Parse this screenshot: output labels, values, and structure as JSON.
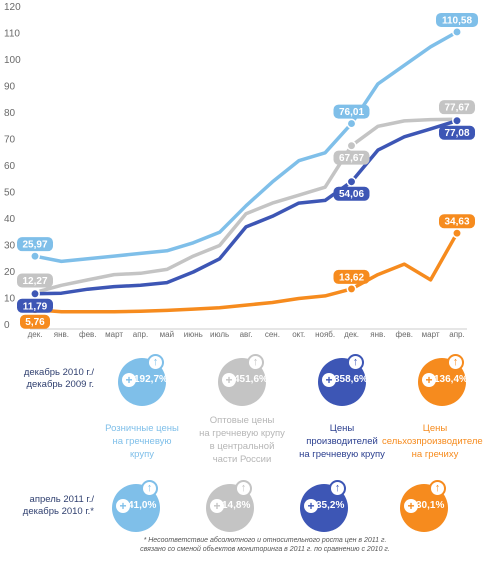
{
  "chart_data": {
    "type": "line",
    "categories": [
      "дек.",
      "янв.",
      "фев.",
      "март",
      "апр.",
      "май",
      "июнь",
      "июль",
      "авг.",
      "сен.",
      "окт.",
      "нояб.",
      "дек.",
      "янв.",
      "фев.",
      "март",
      "апр."
    ],
    "ylim": [
      0,
      120
    ],
    "yticks": [
      0,
      10,
      20,
      30,
      40,
      50,
      60,
      70,
      80,
      90,
      100,
      110,
      120
    ],
    "grid": false,
    "series": [
      {
        "color": "#7fbfe9",
        "values": [
          25.97,
          24,
          25,
          26,
          27,
          28,
          31,
          35,
          45,
          54,
          62,
          65,
          76.01,
          91,
          98,
          105,
          110.58
        ]
      },
      {
        "color": "#c4c4c4",
        "values": [
          12.27,
          15,
          17,
          19,
          19.5,
          21,
          26,
          30,
          42,
          46,
          49,
          52,
          67.67,
          75,
          77,
          77.5,
          77.67
        ]
      },
      {
        "color": "#3d56b5",
        "values": [
          11.79,
          12,
          13.5,
          14.5,
          15,
          16,
          20,
          25,
          37,
          41,
          46,
          47,
          54.06,
          66,
          71,
          74,
          77.08
        ]
      },
      {
        "color": "#f68b1e",
        "values": [
          5.76,
          5,
          5,
          5,
          5.2,
          5.5,
          6,
          6.5,
          7.5,
          8.5,
          10,
          11,
          13.62,
          19,
          23,
          17,
          34.63
        ]
      }
    ],
    "data_labels": [
      {
        "text": "25,97",
        "series": 0,
        "index": 0,
        "side": "above"
      },
      {
        "text": "76,01",
        "series": 0,
        "index": 12,
        "side": "above"
      },
      {
        "text": "110,58",
        "series": 0,
        "index": 16,
        "side": "above"
      },
      {
        "text": "12,27",
        "series": 1,
        "index": 0,
        "side": "above"
      },
      {
        "text": "67,67",
        "series": 1,
        "index": 12,
        "side": "below"
      },
      {
        "text": "77,67",
        "series": 1,
        "index": 16,
        "side": "above"
      },
      {
        "text": "11,79",
        "series": 2,
        "index": 0,
        "side": "below"
      },
      {
        "text": "54,06",
        "series": 2,
        "index": 12,
        "side": "below"
      },
      {
        "text": "77,08",
        "series": 2,
        "index": 16,
        "side": "below"
      },
      {
        "text": "5,76",
        "series": 3,
        "index": 0,
        "side": "below"
      },
      {
        "text": "13,62",
        "series": 3,
        "index": 12,
        "side": "above"
      },
      {
        "text": "34,63",
        "series": 3,
        "index": 16,
        "side": "above"
      }
    ]
  },
  "rows": [
    {
      "period": [
        "декабрь 2010 г./",
        "декабрь 2009 г."
      ],
      "values": [
        "192,7%",
        "451,6%",
        "358,6%",
        "136,4%"
      ]
    },
    {
      "period": [
        "апрель 2011 г./",
        "декабрь 2010 г.*"
      ],
      "values": [
        "41,0%",
        "14,8%",
        "35,2%",
        "30,1%"
      ]
    }
  ],
  "categories_legend": [
    {
      "lines": [
        "Розничные цены",
        "на гречневую",
        "крупу"
      ],
      "color": "#7fbfe9"
    },
    {
      "lines": [
        "Оптовые цены",
        "на гречневую крупу",
        "в центральной",
        "части России"
      ],
      "color": "#c4c4c4"
    },
    {
      "lines": [
        "Цены",
        "производителей",
        "на гречневую крупу"
      ],
      "color": "#3d56b5"
    },
    {
      "lines": [
        "Цены",
        "сельхозпроизводителей",
        "на гречиху"
      ],
      "color": "#f68b1e"
    }
  ],
  "symbols": {
    "plus": "+",
    "arrow": "↑"
  },
  "footnote": [
    "* Несоответствие абсолютного и относительного роста цен в 2011 г.",
    "связано со сменой объектов мониторинга в 2011 г. по сравнению с 2010 г."
  ]
}
